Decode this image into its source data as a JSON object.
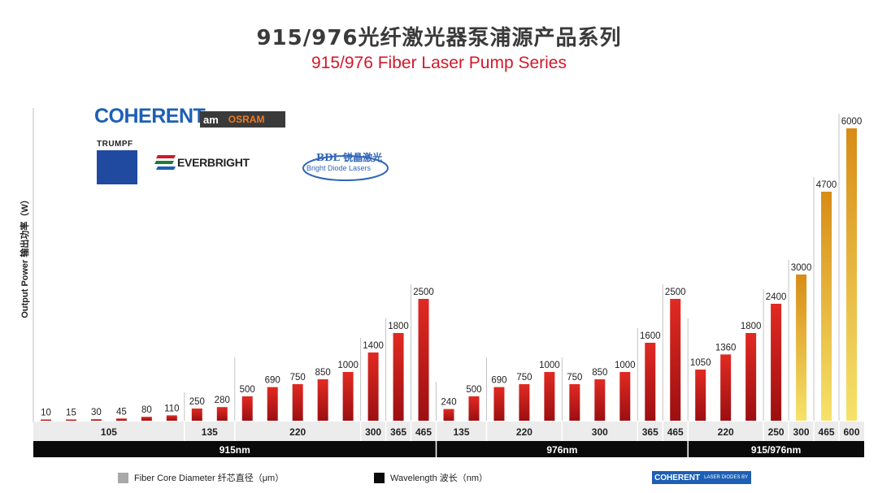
{
  "title": "915/976光纤激光器泵浦源产品系列",
  "subtitle": "915/976 Fiber Laser Pump Series",
  "ylabel": "Output Power 输出功率（W）",
  "logos": {
    "coherent": "COHERENT",
    "ams_osram": "OSRAM",
    "ams_prefix": "am",
    "trumpf": "TRUMPF",
    "everbright": "EVERBRIGHT",
    "bdl_name": "BDL 锐晶激光",
    "bdl_sub": "Bright Diode Lasers",
    "coherent_small": "COHERENT",
    "coherent_small_sub": "LASER DIODES BY"
  },
  "legend": {
    "diameter_label": "Fiber Core Diameter 纤芯直径（μm）",
    "wavelength_label": "Wavelength 波长（nm）"
  },
  "colors": {
    "red_top": "#e12a22",
    "red_bottom": "#9c0f12",
    "gold_top": "#d88c16",
    "gold_bottom": "#f6e36a",
    "band": "#ececec",
    "wave_band": "#0a0a0a"
  },
  "chart_data": {
    "type": "bar",
    "ylabel": "Output Power 输出功率（W）",
    "ylim": [
      0,
      6200
    ],
    "grid": false,
    "bars": [
      {
        "value": 10,
        "diameter": "105",
        "wavelength": "915nm",
        "color": "red"
      },
      {
        "value": 15,
        "diameter": "105",
        "wavelength": "915nm",
        "color": "red"
      },
      {
        "value": 30,
        "diameter": "105",
        "wavelength": "915nm",
        "color": "red"
      },
      {
        "value": 45,
        "diameter": "105",
        "wavelength": "915nm",
        "color": "red"
      },
      {
        "value": 80,
        "diameter": "105",
        "wavelength": "915nm",
        "color": "red"
      },
      {
        "value": 110,
        "diameter": "105",
        "wavelength": "915nm",
        "color": "red"
      },
      {
        "value": 250,
        "diameter": "135",
        "wavelength": "915nm",
        "color": "red"
      },
      {
        "value": 280,
        "diameter": "135",
        "wavelength": "915nm",
        "color": "red"
      },
      {
        "value": 500,
        "diameter": "220",
        "wavelength": "915nm",
        "color": "red"
      },
      {
        "value": 690,
        "diameter": "220",
        "wavelength": "915nm",
        "color": "red"
      },
      {
        "value": 750,
        "diameter": "220",
        "wavelength": "915nm",
        "color": "red"
      },
      {
        "value": 850,
        "diameter": "220",
        "wavelength": "915nm",
        "color": "red"
      },
      {
        "value": 1000,
        "diameter": "220",
        "wavelength": "915nm",
        "color": "red"
      },
      {
        "value": 1400,
        "diameter": "300",
        "wavelength": "915nm",
        "color": "red"
      },
      {
        "value": 1800,
        "diameter": "365",
        "wavelength": "915nm",
        "color": "red"
      },
      {
        "value": 2500,
        "diameter": "465",
        "wavelength": "915nm",
        "color": "red"
      },
      {
        "value": 240,
        "diameter": "135",
        "wavelength": "976nm",
        "color": "red"
      },
      {
        "value": 500,
        "diameter": "135",
        "wavelength": "976nm",
        "color": "red"
      },
      {
        "value": 690,
        "diameter": "220",
        "wavelength": "976nm",
        "color": "red"
      },
      {
        "value": 750,
        "diameter": "220",
        "wavelength": "976nm",
        "color": "red"
      },
      {
        "value": 1000,
        "diameter": "220",
        "wavelength": "976nm",
        "color": "red"
      },
      {
        "value": 750,
        "diameter": "300",
        "wavelength": "976nm",
        "color": "red"
      },
      {
        "value": 850,
        "diameter": "300",
        "wavelength": "976nm",
        "color": "red"
      },
      {
        "value": 1000,
        "diameter": "300",
        "wavelength": "976nm",
        "color": "red"
      },
      {
        "value": 1600,
        "diameter": "365",
        "wavelength": "976nm",
        "color": "red"
      },
      {
        "value": 2500,
        "diameter": "465",
        "wavelength": "976nm",
        "color": "red"
      },
      {
        "value": 1050,
        "diameter": "220",
        "wavelength": "915/976nm",
        "color": "red"
      },
      {
        "value": 1360,
        "diameter": "220",
        "wavelength": "915/976nm",
        "color": "red"
      },
      {
        "value": 1800,
        "diameter": "220",
        "wavelength": "915/976nm",
        "color": "red"
      },
      {
        "value": 2400,
        "diameter": "250",
        "wavelength": "915/976nm",
        "color": "red"
      },
      {
        "value": 3000,
        "diameter": "300",
        "wavelength": "915/976nm",
        "color": "gold"
      },
      {
        "value": 4700,
        "diameter": "465",
        "wavelength": "915/976nm",
        "color": "gold"
      },
      {
        "value": 6000,
        "diameter": "600",
        "wavelength": "915/976nm",
        "color": "gold"
      }
    ],
    "diameter_groups": [
      {
        "label": "105",
        "start": 0,
        "end": 5
      },
      {
        "label": "135",
        "start": 6,
        "end": 7
      },
      {
        "label": "220",
        "start": 8,
        "end": 12
      },
      {
        "label": "300",
        "start": 13,
        "end": 13
      },
      {
        "label": "365",
        "start": 14,
        "end": 14
      },
      {
        "label": "465",
        "start": 15,
        "end": 15
      },
      {
        "label": "135",
        "start": 16,
        "end": 17
      },
      {
        "label": "220",
        "start": 18,
        "end": 20
      },
      {
        "label": "300",
        "start": 21,
        "end": 23
      },
      {
        "label": "365",
        "start": 24,
        "end": 24
      },
      {
        "label": "465",
        "start": 25,
        "end": 25
      },
      {
        "label": "220",
        "start": 26,
        "end": 28
      },
      {
        "label": "250",
        "start": 29,
        "end": 29
      },
      {
        "label": "300",
        "start": 30,
        "end": 30
      },
      {
        "label": "465",
        "start": 31,
        "end": 31
      },
      {
        "label": "600",
        "start": 32,
        "end": 32
      }
    ],
    "wavelength_groups": [
      {
        "label": "915nm",
        "start": 0,
        "end": 15
      },
      {
        "label": "976nm",
        "start": 16,
        "end": 25
      },
      {
        "label": "915/976nm",
        "start": 26,
        "end": 32
      }
    ]
  }
}
